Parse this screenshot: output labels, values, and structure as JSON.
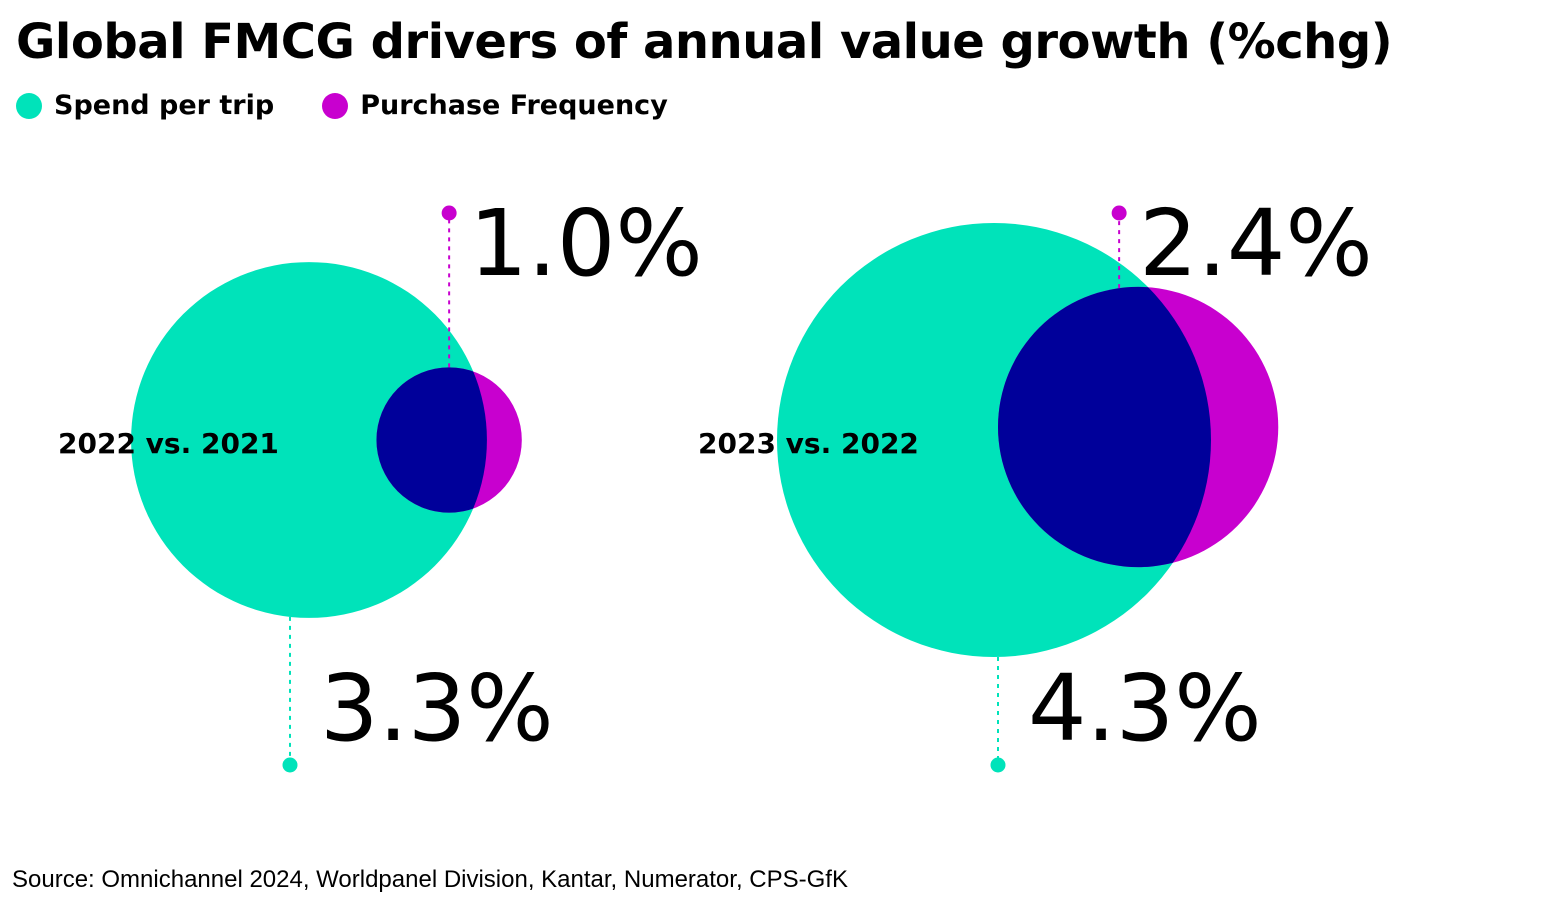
{
  "title": "Global FMCG drivers of annual value growth (%chg)",
  "source": "Source: Omnichannel 2024, Worldpanel Division, Kantar, Numerator, CPS-GfK",
  "colors": {
    "spend": "#00E3BA",
    "frequency": "#C800CF",
    "overlap": "#00009A"
  },
  "legend": [
    {
      "label": "Spend per trip",
      "color": "#00E3BA"
    },
    {
      "label": "Purchase Frequency",
      "color": "#C800CF"
    }
  ],
  "chart_data": {
    "type": "bubble",
    "title": "Global FMCG drivers of annual value growth (%chg)",
    "series": [
      {
        "name": "Spend per trip",
        "values": [
          3.3,
          4.3
        ]
      },
      {
        "name": "Purchase Frequency",
        "values": [
          1.0,
          2.4
        ]
      }
    ],
    "categories": [
      "2022 vs. 2021",
      "2023 vs. 2022"
    ],
    "data_labels": {
      "Spend per trip": [
        "3.3%",
        "4.3%"
      ],
      "Purchase Frequency": [
        "1.0%",
        "2.4%"
      ]
    },
    "legend_position": "top-left",
    "grid": false
  }
}
